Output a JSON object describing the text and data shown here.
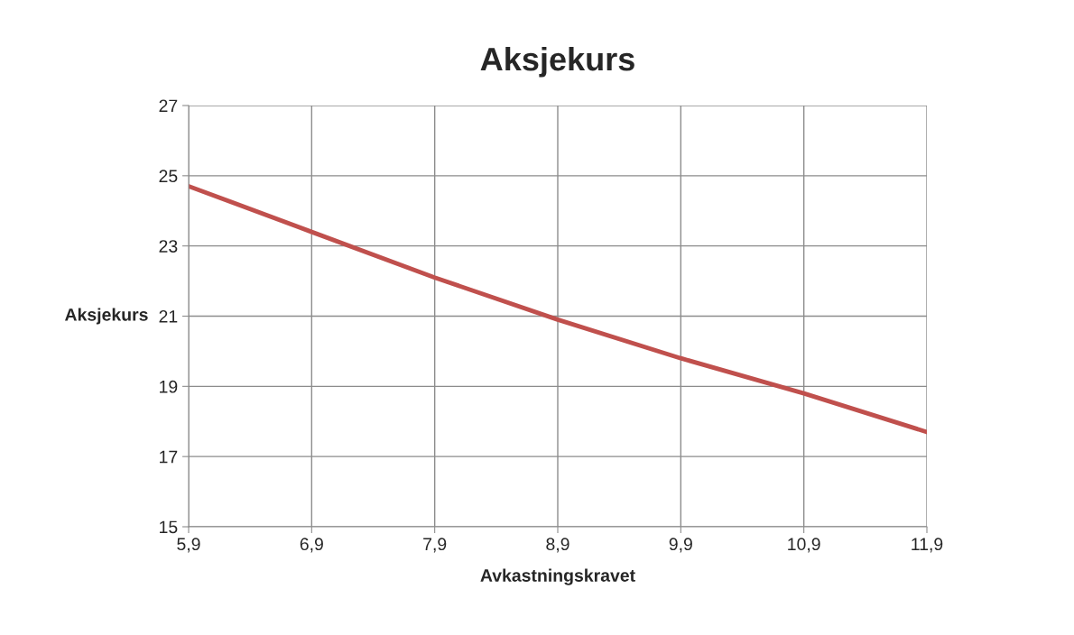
{
  "chart_data": {
    "type": "line",
    "title": "Aksjekurs",
    "xlabel": "Avkastningskravet",
    "ylabel": "Aksjekurs",
    "x": [
      5.9,
      6.9,
      7.9,
      8.9,
      9.9,
      10.9,
      11.9
    ],
    "series": [
      {
        "color": "#c0504d",
        "values": [
          24.7,
          23.4,
          22.1,
          20.9,
          19.8,
          18.8,
          17.7
        ]
      }
    ],
    "xlim": [
      5.9,
      11.9
    ],
    "xticks": [
      {
        "value": 5.9,
        "label": "5,9"
      },
      {
        "value": 6.9,
        "label": "6,9"
      },
      {
        "value": 7.9,
        "label": "7,9"
      },
      {
        "value": 8.9,
        "label": "8,9"
      },
      {
        "value": 9.9,
        "label": "9,9"
      },
      {
        "value": 10.9,
        "label": "10,9"
      },
      {
        "value": 11.9,
        "label": "11,9"
      }
    ],
    "ylim": [
      15,
      27
    ],
    "yticks": [
      15,
      17,
      19,
      21,
      23,
      25,
      27
    ],
    "grid": true,
    "marker": "none",
    "line_style": "solid"
  }
}
